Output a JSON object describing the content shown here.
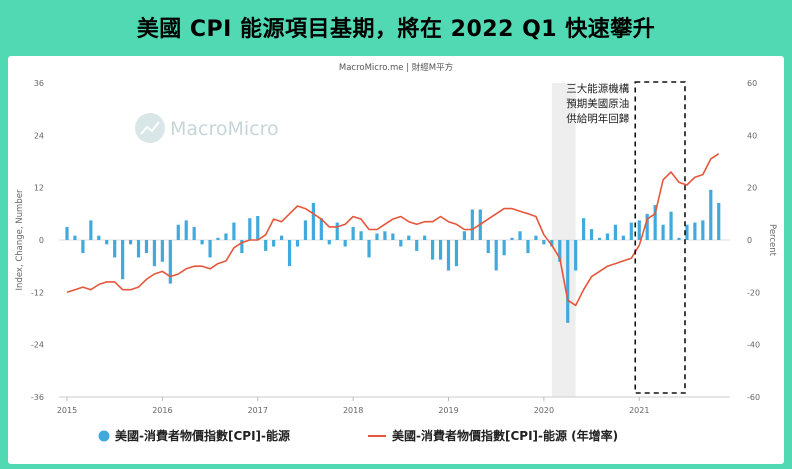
{
  "title": "美國 CPI 能源項目基期，將在 2022 Q1 快速攀升",
  "source": "MacroMicro.me | 財經M平方",
  "watermark": "MacroMicro",
  "annotation": {
    "lines": [
      "三大能源機構",
      "預期美國原油",
      "供給明年回歸"
    ]
  },
  "colors": {
    "bar": "#41aadc",
    "line": "#e5573a",
    "background": "#50d9b3",
    "recession_shade": "#eeeeee"
  },
  "chart_data": {
    "type": "bar+line",
    "x_tick_labels": [
      "2015",
      "2016",
      "2017",
      "2018",
      "2019",
      "2020",
      "2021"
    ],
    "left_axis": {
      "label": "Index, Change, Number",
      "ticks": [
        "36",
        "24",
        "12",
        "0",
        "-12",
        "-24",
        "-36"
      ],
      "range": [
        -36,
        36
      ]
    },
    "right_axis": {
      "label": "Percent",
      "ticks": [
        "60",
        "40",
        "20",
        "0",
        "-20",
        "-40",
        "-60"
      ],
      "range": [
        -60,
        60
      ]
    },
    "shaded_period": [
      "2020-02",
      "2020-04"
    ],
    "highlight_box": [
      "2021-01",
      "2021-06"
    ],
    "series": [
      {
        "name": "美國-消費者物價指數[CPI]-能源",
        "type": "bar",
        "axis": "left",
        "x": [
          "2015-01",
          "2015-02",
          "2015-03",
          "2015-04",
          "2015-05",
          "2015-06",
          "2015-07",
          "2015-08",
          "2015-09",
          "2015-10",
          "2015-11",
          "2015-12",
          "2016-01",
          "2016-02",
          "2016-03",
          "2016-04",
          "2016-05",
          "2016-06",
          "2016-07",
          "2016-08",
          "2016-09",
          "2016-10",
          "2016-11",
          "2016-12",
          "2017-01",
          "2017-02",
          "2017-03",
          "2017-04",
          "2017-05",
          "2017-06",
          "2017-07",
          "2017-08",
          "2017-09",
          "2017-10",
          "2017-11",
          "2017-12",
          "2018-01",
          "2018-02",
          "2018-03",
          "2018-04",
          "2018-05",
          "2018-06",
          "2018-07",
          "2018-08",
          "2018-09",
          "2018-10",
          "2018-11",
          "2018-12",
          "2019-01",
          "2019-02",
          "2019-03",
          "2019-04",
          "2019-05",
          "2019-06",
          "2019-07",
          "2019-08",
          "2019-09",
          "2019-10",
          "2019-11",
          "2019-12",
          "2020-01",
          "2020-02",
          "2020-03",
          "2020-04",
          "2020-05",
          "2020-06",
          "2020-07",
          "2020-08",
          "2020-09",
          "2020-10",
          "2020-11",
          "2020-12",
          "2021-01",
          "2021-02",
          "2021-03",
          "2021-04",
          "2021-05",
          "2021-06",
          "2021-07",
          "2021-08",
          "2021-09",
          "2021-10",
          "2021-11"
        ],
        "values": [
          3,
          1,
          -3,
          4.5,
          1,
          -1,
          -4,
          -9,
          -1,
          -4,
          -3,
          -6,
          -5,
          -10,
          3.5,
          4.5,
          3,
          -1,
          -4,
          0.5,
          1.5,
          4,
          -3,
          5,
          5.5,
          -2.5,
          -1.5,
          1,
          -6,
          -1.5,
          4.5,
          8.5,
          5,
          -1,
          4,
          -1.5,
          3,
          2,
          -4,
          1.5,
          2,
          1.5,
          -1.5,
          1,
          -2.5,
          1,
          -4.5,
          -4.5,
          -7,
          -6,
          2,
          7,
          7,
          -3,
          -7,
          -3.5,
          0.5,
          2,
          -3,
          1,
          -1,
          -1.5,
          -5,
          -19,
          -7,
          5,
          2.5,
          0.5,
          1.5,
          3.5,
          1,
          4,
          4.5,
          6,
          8,
          3.5,
          6.5,
          0.5,
          3.5,
          4,
          4.5,
          11.5,
          8.5
        ]
      },
      {
        "name": "美國-消費者物價指數[CPI]-能源 (年增率)",
        "type": "line",
        "axis": "right",
        "x": [
          "2015-01",
          "2015-02",
          "2015-03",
          "2015-04",
          "2015-05",
          "2015-06",
          "2015-07",
          "2015-08",
          "2015-09",
          "2015-10",
          "2015-11",
          "2015-12",
          "2016-01",
          "2016-02",
          "2016-03",
          "2016-04",
          "2016-05",
          "2016-06",
          "2016-07",
          "2016-08",
          "2016-09",
          "2016-10",
          "2016-11",
          "2016-12",
          "2017-01",
          "2017-02",
          "2017-03",
          "2017-04",
          "2017-05",
          "2017-06",
          "2017-07",
          "2017-08",
          "2017-09",
          "2017-10",
          "2017-11",
          "2017-12",
          "2018-01",
          "2018-02",
          "2018-03",
          "2018-04",
          "2018-05",
          "2018-06",
          "2018-07",
          "2018-08",
          "2018-09",
          "2018-10",
          "2018-11",
          "2018-12",
          "2019-01",
          "2019-02",
          "2019-03",
          "2019-04",
          "2019-05",
          "2019-06",
          "2019-07",
          "2019-08",
          "2019-09",
          "2019-10",
          "2019-11",
          "2019-12",
          "2020-01",
          "2020-02",
          "2020-03",
          "2020-04",
          "2020-05",
          "2020-06",
          "2020-07",
          "2020-08",
          "2020-09",
          "2020-10",
          "2020-11",
          "2020-12",
          "2021-01",
          "2021-02",
          "2021-03",
          "2021-04",
          "2021-05",
          "2021-06",
          "2021-07",
          "2021-08",
          "2021-09",
          "2021-10",
          "2021-11"
        ],
        "values": [
          -20,
          -19,
          -18,
          -19,
          -17,
          -16,
          -16,
          -19,
          -19,
          -18,
          -15,
          -13,
          -12,
          -14,
          -13,
          -11,
          -10,
          -10,
          -11,
          -9,
          -8,
          -3,
          -1,
          0,
          0,
          2,
          8,
          7,
          10,
          13,
          12,
          10,
          8,
          5,
          5,
          6,
          9,
          8,
          4,
          4,
          6,
          8,
          9,
          7,
          6,
          7,
          7,
          9,
          7,
          6,
          4,
          4,
          6,
          8,
          10,
          12,
          12,
          11,
          10,
          9,
          2,
          -2,
          -7,
          -23,
          -25,
          -19,
          -14,
          -12,
          -10,
          -9,
          -8,
          -7,
          -2,
          8,
          10,
          23,
          26,
          22,
          21,
          24,
          25,
          31,
          33
        ]
      }
    ],
    "legend_position": "bottom",
    "grid": false
  }
}
